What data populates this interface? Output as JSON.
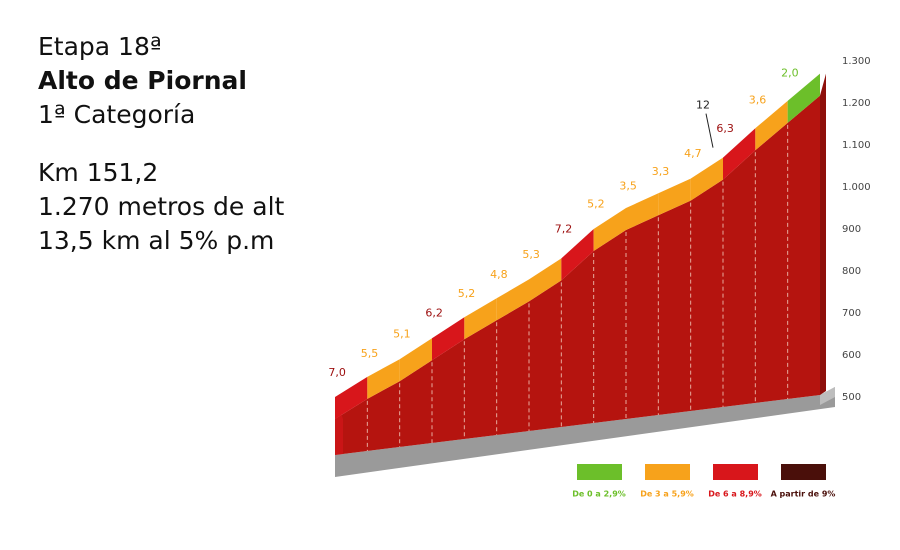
{
  "info": {
    "lines": [
      "Etapa 18ª",
      "Alto de Piornal",
      "1ª Categoría",
      "Km 151,2",
      "1.270 metros de alt",
      "13,5 km al 5% p.m"
    ]
  },
  "chart_data": {
    "type": "profile",
    "elevations": [
      500,
      548,
      590,
      640,
      690,
      735,
      780,
      830,
      900,
      950,
      985,
      1020,
      1070,
      1140,
      1205,
      1270
    ],
    "gradients": [
      7.0,
      5.5,
      5.1,
      6.2,
      5.2,
      4.8,
      5.3,
      7.2,
      5.2,
      3.5,
      3.3,
      4.7,
      6.3,
      3.6,
      2.0
    ],
    "value_labels": [
      "7,0",
      "5,5",
      "5,1",
      "6,2",
      "5,2",
      "4,8",
      "5,3",
      "7,2",
      "5,2",
      "3,5",
      "3,3",
      "4,7",
      "6,3",
      "3,6",
      "2,0"
    ],
    "colors": [
      "#d8161b",
      "#f7a21b",
      "#f7a21b",
      "#d8161b",
      "#f7a21b",
      "#f7a21b",
      "#f7a21b",
      "#d8161b",
      "#f7a21b",
      "#f7a21b",
      "#f7a21b",
      "#f7a21b",
      "#d8161b",
      "#f7a21b",
      "#6cbf2a"
    ],
    "peak_gradient": 12,
    "ylim": [
      500,
      1300
    ],
    "yticks": [
      500,
      600,
      700,
      800,
      900,
      {
        "value": 1000,
        "label": "1.000"
      },
      {
        "value": 1100,
        "label": "1.100"
      },
      {
        "value": 1200,
        "label": "1.200"
      },
      {
        "value": 1300,
        "label": "1.300"
      }
    ],
    "legend": [
      {
        "name": "De 0 a 2,9%",
        "color": "#6cbf2a"
      },
      {
        "name": "De 3 a 5,9%",
        "color": "#f7a21b"
      },
      {
        "name": "De 6 a 8,9%",
        "color": "#d8161b"
      },
      {
        "name": "A partir de 9%",
        "color": "#4a0f0a"
      }
    ]
  }
}
